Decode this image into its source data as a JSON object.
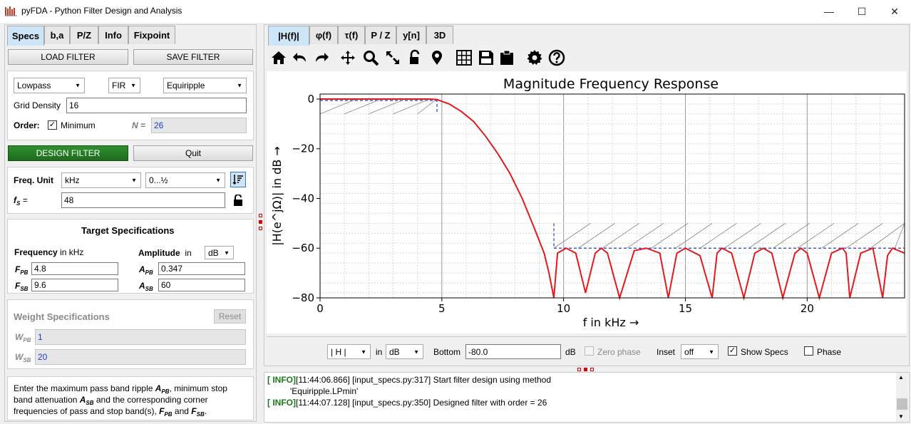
{
  "app": {
    "title": "pyFDA - Python Filter Design and Analysis",
    "minimize": "—",
    "maximize": "☐",
    "close": "✕"
  },
  "left_tabs": [
    "Specs",
    "b,a",
    "P/Z",
    "Info",
    "Fixpoint"
  ],
  "buttons": {
    "load": "LOAD FILTER",
    "save": "SAVE FILTER",
    "design": "DESIGN FILTER",
    "quit": "Quit",
    "reset": "Reset"
  },
  "filter": {
    "response_type": "Lowpass",
    "filter_type": "FIR",
    "method": "Equiripple",
    "grid_density_label": "Grid Density",
    "grid_density": "16",
    "order_label": "Order:",
    "order_check": "Minimum",
    "n_label": "N =",
    "n_value": "26"
  },
  "freq": {
    "unit_label": "Freq. Unit",
    "unit": "kHz",
    "range": "0...½",
    "fs_label": "f",
    "fs_sub": "S",
    "fs_eq": " =",
    "fs": "48"
  },
  "target": {
    "title": "Target Specifications",
    "freq_label": "Frequency",
    "freq_unit_in": "in kHz",
    "amp_label": "Amplitude",
    "amp_in": "in",
    "amp_unit": "dB",
    "rows": [
      {
        "f_sym": "F",
        "f_sub": "PB",
        "f_val": "4.8",
        "a_sym": "A",
        "a_sub": "PB",
        "a_val": "0.347"
      },
      {
        "f_sym": "F",
        "f_sub": "SB",
        "f_val": "9.6",
        "a_sym": "A",
        "a_sub": "SB",
        "a_val": "60"
      }
    ]
  },
  "weight": {
    "title": "Weight Specifications",
    "rows": [
      {
        "sym": "W",
        "sub": "PB",
        "val": "1"
      },
      {
        "sym": "W",
        "sub": "SB",
        "val": "20"
      }
    ]
  },
  "help": {
    "t1": "Enter the maximum pass band ripple ",
    "s1": "A",
    "ss1": "PB",
    "t2": ", minimum stop",
    "t3": "band attenuation ",
    "s2": "A",
    "ss2": "SB",
    "t4": " and the corresponding corner",
    "t5": "frequencies of pass and stop band(s), ",
    "s3": "F",
    "ss3": "PB",
    "t6": " and ",
    "s4": "F",
    "ss4": "SB",
    "t7": "."
  },
  "right_tabs": [
    "|H(f)|",
    "φ(f)",
    "τ(f)",
    "P / Z",
    "y[n]",
    "3D"
  ],
  "toolbar_icons": [
    "home-icon",
    "back-icon",
    "forward-icon",
    "pan-icon",
    "zoom-icon",
    "fullscreen-icon",
    "lock-icon",
    "marker-icon",
    "grid-icon",
    "save-icon",
    "clipboard-icon",
    "settings-icon",
    "help-icon"
  ],
  "plot_controls": {
    "mode": "| H |",
    "in": "in",
    "unit": "dB",
    "bottom_label": "Bottom",
    "bottom": "-80.0",
    "bottom_unit": "dB",
    "zero_phase": "Zero phase",
    "inset_label": "Inset",
    "inset": "off",
    "show_specs": "Show Specs",
    "phase": "Phase"
  },
  "chart_data": {
    "type": "line",
    "title": "Magnitude Frequency Response",
    "xlabel": "f in kHz →",
    "ylabel": "|H(e^jΩ)| in dB →",
    "xlim": [
      0,
      24
    ],
    "ylim": [
      -80,
      2
    ],
    "xticks": [
      "0",
      "5",
      "10",
      "15",
      "20"
    ],
    "yticks": [
      "0",
      "−20",
      "−40",
      "−60",
      "−80"
    ],
    "specs": {
      "F_PB": 4.8,
      "F_SB": 9.6,
      "A_PB": 0.347,
      "A_SB": 60
    },
    "series": [
      {
        "name": "|H(f)|",
        "color": "#e31a1c",
        "x": [
          0,
          0.5,
          1,
          1.5,
          2,
          2.5,
          3,
          3.5,
          4,
          4.5,
          4.8,
          5.3,
          5.8,
          6.3,
          6.8,
          7.3,
          7.8,
          8.3,
          8.8,
          9.2,
          9.4,
          9.6,
          9.75,
          10.1,
          10.5,
          10.9,
          11.3,
          11.55,
          11.8,
          12.3,
          12.9,
          13.4,
          13.95,
          14.3,
          14.65,
          15.0,
          15.6,
          16.1,
          16.3,
          16.5,
          16.9,
          17.4,
          17.85,
          18.2,
          18.55,
          19.0,
          19.5,
          19.75,
          20.0,
          20.5,
          21.0,
          21.45,
          21.6,
          21.75,
          22.2,
          22.7,
          23.1,
          23.3,
          23.5,
          24.0
        ],
        "y": [
          0,
          0,
          0,
          0,
          0,
          0,
          0,
          0,
          0,
          0,
          -0.2,
          -2,
          -5,
          -9,
          -15,
          -22,
          -30,
          -40,
          -52,
          -62,
          -70,
          -80,
          -62,
          -60,
          -62,
          -78,
          -62,
          -60,
          -62,
          -80,
          -61,
          -60,
          -62,
          -80,
          -62,
          -60,
          -63,
          -80,
          -62,
          -60,
          -62,
          -80,
          -62,
          -60,
          -62,
          -80,
          -62,
          -60,
          -62,
          -80,
          -62,
          -60,
          -62,
          -80,
          -62,
          -60,
          -80,
          -63,
          -60,
          -62
        ]
      }
    ]
  },
  "log": [
    {
      "tag": "[ INFO]",
      "text": "[11:44:06.866] [input_specs.py:317] Start filter design using method"
    },
    {
      "tag": "",
      "text": "'Equiripple.LPmin'"
    },
    {
      "tag": "[ INFO]",
      "text": "[11:44:07.128] [input_specs.py:350] Designed filter with order = 26"
    }
  ]
}
